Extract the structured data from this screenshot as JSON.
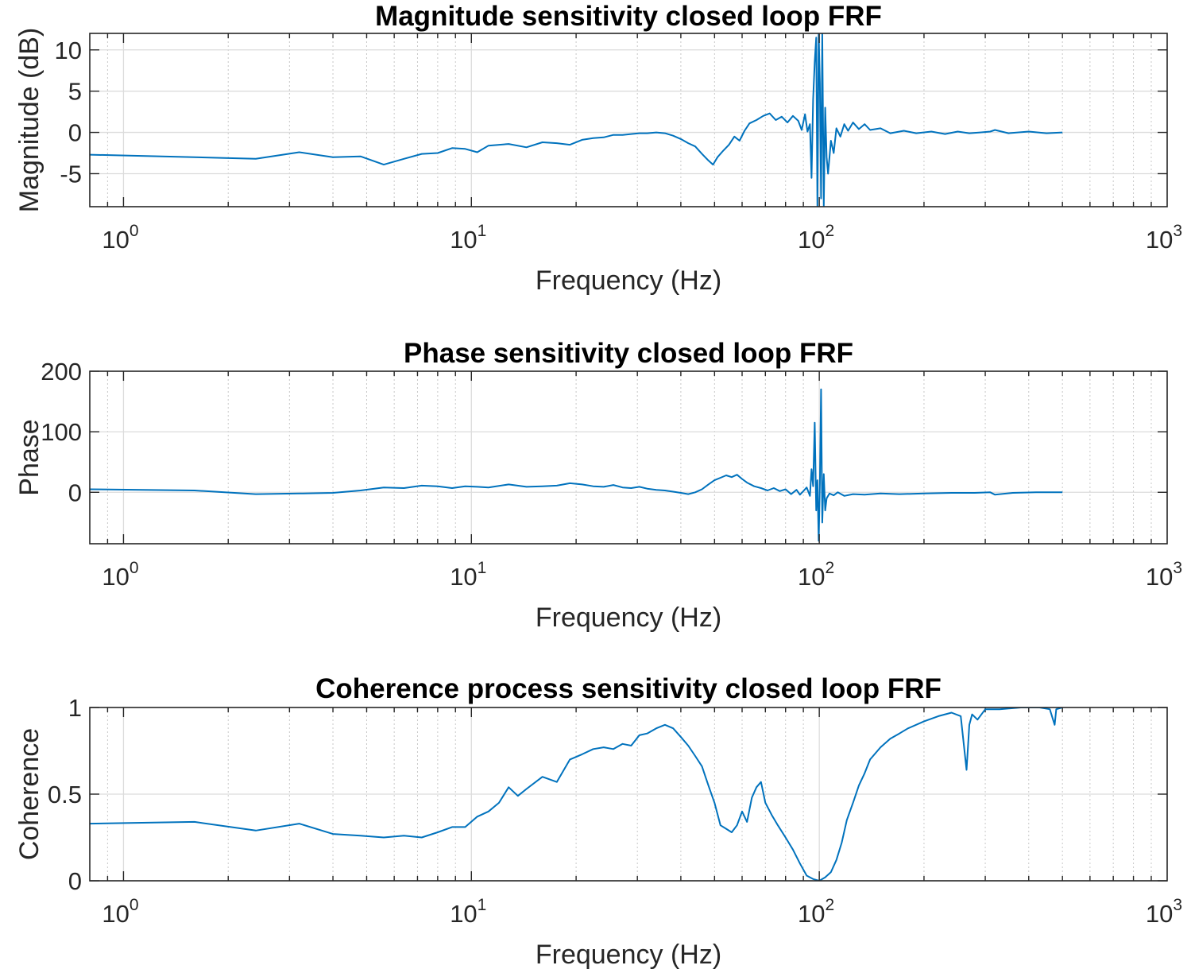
{
  "chart_data": [
    {
      "type": "line",
      "title": "Magnitude sensitivity closed loop FRF",
      "xlabel": "Frequency (Hz)",
      "ylabel": "Magnitude (dB)",
      "xscale": "log",
      "xlim": [
        0.8,
        1000
      ],
      "ylim": [
        -9,
        12
      ],
      "x_ticks": [
        1,
        10,
        100,
        1000
      ],
      "x_tick_labels": [
        [
          "10",
          "0"
        ],
        [
          "10",
          "1"
        ],
        [
          "10",
          "2"
        ],
        [
          "10",
          "3"
        ]
      ],
      "y_ticks": [
        -5,
        0,
        5,
        10
      ],
      "y_tick_labels": [
        "-5",
        "0",
        "5",
        "10"
      ],
      "grid": true,
      "series": [
        {
          "color": "#0072BD",
          "x": [
            0.8,
            1.6,
            2.4,
            3.2,
            4.0,
            4.8,
            5.6,
            6.4,
            7.2,
            8.0,
            8.8,
            9.6,
            10.4,
            11.2,
            12.8,
            14.4,
            16.0,
            17.6,
            19.2,
            20.8,
            22.4,
            24.0,
            25.6,
            27.2,
            28.8,
            30.4,
            32.0,
            34.0,
            36.0,
            38.0,
            40.0,
            42.0,
            44.0,
            46.0,
            48.0,
            49.5,
            51.0,
            53.0,
            55.0,
            57.0,
            59.0,
            61.0,
            63.0,
            66.0,
            69.0,
            72.0,
            75.0,
            78.0,
            81.0,
            84.0,
            87.0,
            89.0,
            91.0,
            92.5,
            94.0,
            95.0,
            96.0,
            97.0,
            98.0,
            98.8,
            99.6,
            100.4,
            101.2,
            102.0,
            103.0,
            104.0,
            105.0,
            106.0,
            108.0,
            110.0,
            112.0,
            115.0,
            118.0,
            121.0,
            125.0,
            130.0,
            135.0,
            140.0,
            150.0,
            160.0,
            175.0,
            190.0,
            210.0,
            230.0,
            250.0,
            270.0,
            290.0,
            310.0,
            320.0,
            350.0,
            400.0,
            450.0,
            500.0
          ],
          "y": [
            -2.7,
            -3.0,
            -3.2,
            -2.4,
            -3.0,
            -2.9,
            -3.9,
            -3.2,
            -2.6,
            -2.5,
            -1.9,
            -2.0,
            -2.4,
            -1.6,
            -1.4,
            -1.8,
            -1.2,
            -1.3,
            -1.5,
            -0.9,
            -0.7,
            -0.6,
            -0.3,
            -0.3,
            -0.2,
            -0.1,
            -0.1,
            0.0,
            -0.1,
            -0.4,
            -0.8,
            -1.3,
            -1.7,
            -2.6,
            -3.4,
            -3.9,
            -3.0,
            -2.2,
            -1.5,
            -0.5,
            -1.0,
            0.2,
            1.1,
            1.5,
            2.0,
            2.3,
            1.5,
            1.9,
            1.2,
            2.0,
            1.4,
            0.3,
            2.2,
            0.1,
            1.0,
            -5.5,
            4.0,
            8.5,
            11.5,
            -9.0,
            12.0,
            6.0,
            -8.0,
            12.0,
            -9.0,
            3.0,
            -3.0,
            -5.0,
            -1.0,
            -2.5,
            0.5,
            -0.5,
            1.0,
            0.2,
            1.2,
            0.4,
            1.0,
            0.3,
            0.5,
            -0.1,
            0.2,
            -0.1,
            0.1,
            -0.2,
            0.1,
            -0.1,
            0.0,
            0.1,
            0.3,
            -0.1,
            0.1,
            -0.1,
            0.0
          ]
        }
      ]
    },
    {
      "type": "line",
      "title": "Phase sensitivity closed loop FRF",
      "xlabel": "Frequency (Hz)",
      "ylabel": "Phase",
      "xscale": "log",
      "xlim": [
        0.8,
        1000
      ],
      "ylim": [
        -85,
        200
      ],
      "x_ticks": [
        1,
        10,
        100,
        1000
      ],
      "x_tick_labels": [
        [
          "10",
          "0"
        ],
        [
          "10",
          "1"
        ],
        [
          "10",
          "2"
        ],
        [
          "10",
          "3"
        ]
      ],
      "y_ticks": [
        0,
        100,
        200
      ],
      "y_tick_labels": [
        "0",
        "100",
        "200"
      ],
      "grid": true,
      "series": [
        {
          "color": "#0072BD",
          "x": [
            0.8,
            1.6,
            2.4,
            3.2,
            4.0,
            4.8,
            5.6,
            6.4,
            7.2,
            8.0,
            8.8,
            9.6,
            10.4,
            11.2,
            12.8,
            14.4,
            16.0,
            17.6,
            19.2,
            20.8,
            22.4,
            24.0,
            25.6,
            27.2,
            28.8,
            30.4,
            32.0,
            34.0,
            36.0,
            38.0,
            40.0,
            42.0,
            44.0,
            46.0,
            48.0,
            50.0,
            52.0,
            54.0,
            56.0,
            58.0,
            60.0,
            62.0,
            65.0,
            68.0,
            71.0,
            74.0,
            77.0,
            80.0,
            83.0,
            86.0,
            88.0,
            90.0,
            92.0,
            94.0,
            95.0,
            96.0,
            97.0,
            98.0,
            98.8,
            99.6,
            100.4,
            101.2,
            102.0,
            103.0,
            104.0,
            105.0,
            107.0,
            110.0,
            113.0,
            118.0,
            125.0,
            135.0,
            150.0,
            170.0,
            200.0,
            240.0,
            280.0,
            310.0,
            320.0,
            360.0,
            420.0,
            500.0
          ],
          "y": [
            5,
            3,
            -3,
            -2,
            -1,
            3,
            8,
            7,
            11,
            10,
            7,
            10,
            9,
            8,
            13,
            9,
            10,
            11,
            15,
            13,
            10,
            9,
            12,
            8,
            7,
            9,
            6,
            4,
            3,
            1,
            -1,
            -3,
            0,
            5,
            13,
            20,
            24,
            28,
            25,
            29,
            22,
            16,
            10,
            7,
            3,
            7,
            2,
            5,
            -3,
            4,
            -4,
            2,
            8,
            -6,
            38,
            10,
            115,
            -30,
            20,
            -80,
            15,
            170,
            -50,
            30,
            -30,
            -10,
            -2,
            -5,
            0,
            -6,
            -3,
            -4,
            -2,
            -3,
            -2,
            -1,
            -1,
            0,
            -4,
            -1,
            0,
            0
          ]
        }
      ]
    },
    {
      "type": "line",
      "title": "Coherence process sensitivity closed loop FRF",
      "xlabel": "Frequency (Hz)",
      "ylabel": "Coherence",
      "xscale": "log",
      "xlim": [
        0.8,
        1000
      ],
      "ylim": [
        0,
        1
      ],
      "x_ticks": [
        1,
        10,
        100,
        1000
      ],
      "x_tick_labels": [
        [
          "10",
          "0"
        ],
        [
          "10",
          "1"
        ],
        [
          "10",
          "2"
        ],
        [
          "10",
          "3"
        ]
      ],
      "y_ticks": [
        0,
        0.5,
        1
      ],
      "y_tick_labels": [
        "0",
        "0.5",
        "1"
      ],
      "grid": true,
      "series": [
        {
          "color": "#0072BD",
          "x": [
            0.8,
            1.6,
            2.4,
            3.2,
            4.0,
            4.8,
            5.6,
            6.4,
            7.2,
            8.0,
            8.8,
            9.6,
            10.4,
            11.2,
            12.0,
            12.8,
            13.6,
            14.4,
            16.0,
            17.6,
            19.2,
            20.8,
            22.4,
            24.0,
            25.6,
            27.2,
            28.8,
            30.4,
            32.0,
            34.0,
            36.0,
            38.0,
            40.0,
            42.0,
            44.0,
            46.0,
            48.0,
            50.0,
            52.0,
            54.0,
            56.0,
            58.0,
            60.0,
            62.0,
            64.0,
            66.0,
            68.0,
            70.0,
            73.0,
            76.0,
            80.0,
            84.0,
            88.0,
            92.0,
            96.0,
            100.0,
            104.0,
            108.0,
            112.0,
            116.0,
            120.0,
            125.0,
            130.0,
            135.0,
            140.0,
            150.0,
            160.0,
            170.0,
            180.0,
            200.0,
            220.0,
            240.0,
            255.0,
            265.0,
            270.0,
            275.0,
            285.0,
            300.0,
            330.0,
            380.0,
            430.0,
            460.0,
            475.0,
            480.0,
            500.0
          ],
          "y": [
            0.33,
            0.34,
            0.29,
            0.33,
            0.27,
            0.26,
            0.25,
            0.26,
            0.25,
            0.28,
            0.31,
            0.31,
            0.37,
            0.4,
            0.45,
            0.54,
            0.49,
            0.53,
            0.6,
            0.57,
            0.7,
            0.73,
            0.76,
            0.77,
            0.76,
            0.79,
            0.78,
            0.84,
            0.85,
            0.88,
            0.9,
            0.88,
            0.83,
            0.78,
            0.72,
            0.66,
            0.55,
            0.45,
            0.32,
            0.3,
            0.28,
            0.32,
            0.4,
            0.34,
            0.48,
            0.54,
            0.57,
            0.45,
            0.38,
            0.32,
            0.25,
            0.18,
            0.1,
            0.03,
            0.01,
            0.0,
            0.02,
            0.05,
            0.12,
            0.22,
            0.35,
            0.45,
            0.55,
            0.62,
            0.7,
            0.77,
            0.82,
            0.85,
            0.88,
            0.92,
            0.95,
            0.97,
            0.95,
            0.64,
            0.9,
            0.96,
            0.93,
            0.99,
            0.99,
            1.0,
            1.0,
            0.99,
            0.9,
            0.99,
            1.0
          ]
        }
      ]
    }
  ]
}
